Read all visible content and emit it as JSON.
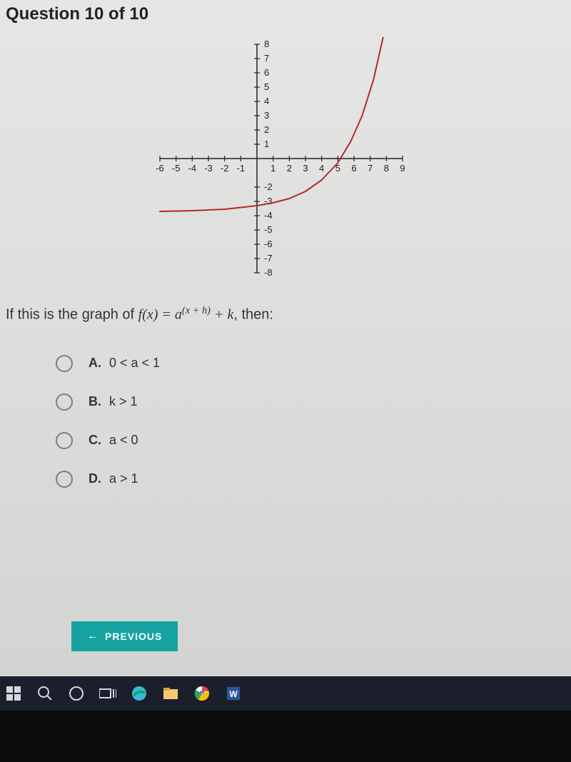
{
  "header": {
    "title": "Question 10 of 10"
  },
  "prompt": {
    "prefix": "If this is the graph of ",
    "func_lhs": "f(x) = a",
    "exp": "(x + h)",
    "func_rhs": " + k",
    "suffix": ", then:"
  },
  "graph": {
    "type": "line",
    "xlim": [
      -6,
      9
    ],
    "ylim": [
      -8,
      8
    ],
    "xticks": [
      -6,
      -5,
      -4,
      -3,
      -2,
      -1,
      1,
      2,
      3,
      4,
      5,
      6,
      7,
      8,
      9
    ],
    "yticks_pos": [
      1,
      2,
      3,
      4,
      5,
      6,
      7,
      8
    ],
    "yticks_neg": [
      -2,
      -3,
      -4,
      -5,
      -6,
      -7,
      -8
    ],
    "axis_color": "#222222",
    "tick_color": "#222222",
    "curve_color": "#b02a2a",
    "curve_width": 2,
    "background_color": "transparent",
    "curve_points": [
      [
        -6,
        -3.7
      ],
      [
        -4,
        -3.65
      ],
      [
        -2,
        -3.55
      ],
      [
        0,
        -3.3
      ],
      [
        1,
        -3.1
      ],
      [
        2,
        -2.8
      ],
      [
        3,
        -2.3
      ],
      [
        4,
        -1.5
      ],
      [
        5,
        -0.3
      ],
      [
        5.8,
        1.2
      ],
      [
        6.5,
        3.0
      ],
      [
        7.2,
        5.5
      ],
      [
        7.8,
        8.5
      ]
    ],
    "label_fontsize": 13
  },
  "options": [
    {
      "letter": "A.",
      "text": "0 < a < 1"
    },
    {
      "letter": "B.",
      "text": "k > 1"
    },
    {
      "letter": "C.",
      "text": "a < 0"
    },
    {
      "letter": "D.",
      "text": "a > 1"
    }
  ],
  "buttons": {
    "previous": "PREVIOUS"
  },
  "taskbar_icons": [
    "start",
    "search",
    "cortana",
    "taskview",
    "edge",
    "files",
    "chrome",
    "word"
  ]
}
